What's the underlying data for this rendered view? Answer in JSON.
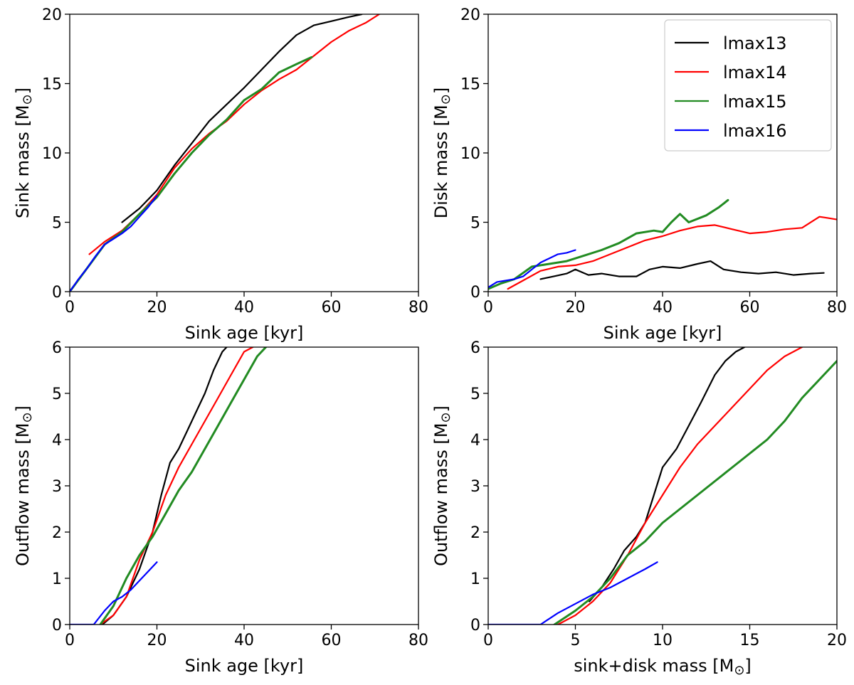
{
  "colors": {
    "lmax13": "#000000",
    "lmax14": "#ff0000",
    "lmax15": "#228b22",
    "lmax16": "#0000ff"
  },
  "chart_data": [
    {
      "type": "line",
      "xlabel": "Sink age [kyr]",
      "ylabel": "Sink mass [M",
      "ylabel_symbol": "⊙",
      "ylabel_close": "]",
      "xlim": [
        0,
        80
      ],
      "ylim": [
        0,
        20
      ],
      "xticks": [
        0,
        20,
        40,
        60,
        80
      ],
      "yticks": [
        0,
        5,
        10,
        15,
        20
      ],
      "grid": false,
      "series": [
        {
          "name": "lmax13",
          "color": "#000000",
          "x": [
            12,
            16,
            20,
            24,
            28,
            32,
            36,
            40,
            44,
            48,
            52,
            56,
            60,
            64,
            67
          ],
          "y": [
            5.0,
            6.0,
            7.3,
            9.1,
            10.7,
            12.3,
            13.5,
            14.7,
            16.0,
            17.3,
            18.5,
            19.2,
            19.5,
            19.8,
            20.0
          ]
        },
        {
          "name": "lmax14",
          "color": "#ff0000",
          "x": [
            4.5,
            8,
            12,
            16,
            20,
            24,
            28,
            32,
            36,
            40,
            44,
            48,
            52,
            56,
            60,
            64,
            68,
            71
          ],
          "y": [
            2.7,
            3.6,
            4.4,
            5.6,
            7.0,
            8.9,
            10.3,
            11.4,
            12.3,
            13.5,
            14.5,
            15.3,
            16.0,
            17.0,
            18.0,
            18.8,
            19.4,
            20.0
          ]
        },
        {
          "name": "lmax15",
          "color": "#228b22",
          "x": [
            0,
            4,
            8,
            12,
            16,
            20,
            24,
            28,
            32,
            36,
            40,
            44,
            48,
            52,
            55.5
          ],
          "y": [
            0,
            1.7,
            3.4,
            4.3,
            5.6,
            6.8,
            8.5,
            10.0,
            11.3,
            12.4,
            13.8,
            14.6,
            15.8,
            16.4,
            16.9
          ]
        },
        {
          "name": "lmax16",
          "color": "#0000ff",
          "x": [
            0,
            2,
            4,
            6,
            8,
            10,
            12,
            14,
            16,
            18,
            20
          ],
          "y": [
            0,
            0.9,
            1.7,
            2.6,
            3.4,
            3.8,
            4.2,
            4.7,
            5.4,
            6.1,
            6.9
          ]
        }
      ]
    },
    {
      "type": "line",
      "xlabel": "Sink age [kyr]",
      "ylabel": "Disk mass [M",
      "ylabel_symbol": "⊙",
      "ylabel_close": "]",
      "xlim": [
        0,
        80
      ],
      "ylim": [
        0,
        20
      ],
      "xticks": [
        0,
        20,
        40,
        60,
        80
      ],
      "yticks": [
        0,
        5,
        10,
        15,
        20
      ],
      "grid": false,
      "legend": "top-right",
      "legend_entries": [
        "lmax13",
        "lmax14",
        "lmax15",
        "lmax16"
      ],
      "series": [
        {
          "name": "lmax13",
          "color": "#000000",
          "x": [
            12,
            15,
            18,
            20,
            23,
            26,
            30,
            34,
            37,
            40,
            44,
            48,
            51,
            54,
            58,
            62,
            66,
            70,
            74,
            77
          ],
          "y": [
            0.9,
            1.1,
            1.3,
            1.6,
            1.2,
            1.3,
            1.1,
            1.1,
            1.6,
            1.8,
            1.7,
            2.0,
            2.2,
            1.6,
            1.4,
            1.3,
            1.4,
            1.2,
            1.3,
            1.35
          ]
        },
        {
          "name": "lmax14",
          "color": "#ff0000",
          "x": [
            4.5,
            8,
            12,
            16,
            20,
            24,
            28,
            32,
            36,
            40,
            44,
            48,
            52,
            56,
            60,
            64,
            68,
            72,
            76,
            78,
            80
          ],
          "y": [
            0.2,
            0.8,
            1.5,
            1.8,
            1.9,
            2.2,
            2.7,
            3.2,
            3.7,
            4.0,
            4.4,
            4.7,
            4.8,
            4.5,
            4.2,
            4.3,
            4.5,
            4.6,
            5.4,
            5.3,
            5.2
          ]
        },
        {
          "name": "lmax15",
          "color": "#228b22",
          "x": [
            0,
            3,
            6,
            10,
            14,
            18,
            22,
            26,
            30,
            34,
            38,
            40,
            42,
            44,
            46,
            50,
            53,
            55
          ],
          "y": [
            0.2,
            0.6,
            0.9,
            1.8,
            2.0,
            2.2,
            2.6,
            3.0,
            3.5,
            4.2,
            4.4,
            4.3,
            5.0,
            5.6,
            5.0,
            5.5,
            6.1,
            6.6
          ]
        },
        {
          "name": "lmax16",
          "color": "#0000ff",
          "x": [
            0,
            2,
            4,
            6,
            8,
            10,
            12,
            14,
            16,
            18,
            20
          ],
          "y": [
            0.3,
            0.7,
            0.8,
            0.9,
            1.1,
            1.6,
            2.1,
            2.4,
            2.7,
            2.8,
            3.0
          ]
        }
      ]
    },
    {
      "type": "line",
      "xlabel": "Sink age [kyr]",
      "ylabel": "Outflow mass [M",
      "ylabel_symbol": "⊙",
      "ylabel_close": "]",
      "xlim": [
        0,
        80
      ],
      "ylim": [
        0,
        6
      ],
      "xticks": [
        0,
        20,
        40,
        60,
        80
      ],
      "yticks": [
        0,
        1,
        2,
        3,
        4,
        5,
        6
      ],
      "grid": false,
      "series": [
        {
          "name": "lmax13",
          "color": "#000000",
          "x": [
            7.5,
            10,
            13,
            16,
            19,
            21,
            23,
            25,
            27,
            29,
            31,
            33,
            35,
            36
          ],
          "y": [
            0,
            0.2,
            0.6,
            1.2,
            2.0,
            2.8,
            3.5,
            3.8,
            4.2,
            4.6,
            5.0,
            5.5,
            5.9,
            6.0
          ]
        },
        {
          "name": "lmax14",
          "color": "#ff0000",
          "x": [
            7,
            10,
            13,
            16,
            19,
            22,
            25,
            28,
            31,
            34,
            37,
            40,
            42
          ],
          "y": [
            0,
            0.2,
            0.6,
            1.4,
            2.0,
            2.8,
            3.4,
            3.9,
            4.4,
            4.9,
            5.4,
            5.9,
            6.0
          ]
        },
        {
          "name": "lmax15",
          "color": "#228b22",
          "x": [
            7,
            10,
            13,
            16,
            19,
            22,
            25,
            28,
            31,
            34,
            37,
            40,
            43,
            45
          ],
          "y": [
            0,
            0.4,
            1.0,
            1.5,
            1.9,
            2.4,
            2.9,
            3.3,
            3.8,
            4.3,
            4.8,
            5.3,
            5.8,
            6.0
          ]
        },
        {
          "name": "lmax16",
          "color": "#0000ff",
          "x": [
            0,
            3,
            5.5,
            8,
            10,
            12,
            14,
            16,
            18,
            20
          ],
          "y": [
            0,
            0,
            0,
            0.3,
            0.5,
            0.6,
            0.75,
            0.95,
            1.15,
            1.35
          ]
        }
      ]
    },
    {
      "type": "line",
      "xlabel": "sink+disk mass [M",
      "xlabel_symbol": "⊙",
      "xlabel_close": "]",
      "ylabel": "Outflow mass [M",
      "ylabel_symbol": "⊙",
      "ylabel_close": "]",
      "xlim": [
        0,
        20
      ],
      "ylim": [
        0,
        6
      ],
      "xticks": [
        0,
        5,
        10,
        15,
        20
      ],
      "yticks": [
        0,
        1,
        2,
        3,
        4,
        5,
        6
      ],
      "grid": false,
      "series": [
        {
          "name": "lmax13",
          "color": "#000000",
          "x": [
            5.8,
            6.5,
            7.2,
            7.8,
            8.5,
            9.0,
            9.5,
            10.0,
            10.8,
            11.5,
            12.2,
            13.0,
            13.6,
            14.2,
            14.7
          ],
          "y": [
            0.5,
            0.8,
            1.2,
            1.6,
            1.9,
            2.2,
            2.8,
            3.4,
            3.8,
            4.3,
            4.8,
            5.4,
            5.7,
            5.9,
            6.0
          ]
        },
        {
          "name": "lmax14",
          "color": "#ff0000",
          "x": [
            4.0,
            5.0,
            6.0,
            7.0,
            8.0,
            9.0,
            10.0,
            11.0,
            12.0,
            13.0,
            14.0,
            15.0,
            16.0,
            17.0,
            18.0
          ],
          "y": [
            0,
            0.2,
            0.5,
            0.9,
            1.5,
            2.2,
            2.8,
            3.4,
            3.9,
            4.3,
            4.7,
            5.1,
            5.5,
            5.8,
            6.0
          ]
        },
        {
          "name": "lmax15",
          "color": "#228b22",
          "x": [
            3.8,
            5.0,
            6.0,
            7.0,
            8.0,
            9.0,
            10.0,
            11.0,
            12.0,
            13.0,
            14.0,
            15.0,
            16.0,
            17.0,
            18.0,
            19.0,
            20.0
          ],
          "y": [
            0,
            0.3,
            0.6,
            1.0,
            1.5,
            1.8,
            2.2,
            2.5,
            2.8,
            3.1,
            3.4,
            3.7,
            4.0,
            4.4,
            4.9,
            5.3,
            5.7
          ]
        },
        {
          "name": "lmax16",
          "color": "#0000ff",
          "x": [
            0,
            2.0,
            3.0,
            4.0,
            5.0,
            6.0,
            7.0,
            8.0,
            9.0,
            9.7
          ],
          "y": [
            0,
            0,
            0,
            0.25,
            0.45,
            0.65,
            0.8,
            1.0,
            1.2,
            1.35
          ]
        }
      ]
    }
  ]
}
